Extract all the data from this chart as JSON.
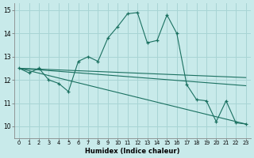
{
  "xlabel": "Humidex (Indice chaleur)",
  "background_color": "#c8eaea",
  "grid_color": "#a8d4d4",
  "line_color": "#1a7060",
  "xlim": [
    -0.5,
    23.5
  ],
  "ylim": [
    9.5,
    15.3
  ],
  "yticks": [
    10,
    11,
    12,
    13,
    14,
    15
  ],
  "xticks": [
    0,
    1,
    2,
    3,
    4,
    5,
    6,
    7,
    8,
    9,
    10,
    11,
    12,
    13,
    14,
    15,
    16,
    17,
    18,
    19,
    20,
    21,
    22,
    23
  ],
  "main_line": {
    "x": [
      0,
      1,
      2,
      3,
      4,
      5,
      6,
      7,
      8,
      9,
      10,
      11,
      12,
      13,
      14,
      15,
      16,
      17,
      18,
      19,
      20,
      21,
      22,
      23
    ],
    "y": [
      12.5,
      12.3,
      12.5,
      12.0,
      11.85,
      11.5,
      12.8,
      13.0,
      12.8,
      13.8,
      14.3,
      14.85,
      14.9,
      13.6,
      13.7,
      14.8,
      14.0,
      11.8,
      11.15,
      11.1,
      10.2,
      11.1,
      10.15,
      10.1
    ]
  },
  "trend_lines": [
    {
      "x": [
        0,
        23
      ],
      "y": [
        12.5,
        10.1
      ]
    },
    {
      "x": [
        0,
        23
      ],
      "y": [
        12.5,
        11.75
      ]
    },
    {
      "x": [
        0,
        23
      ],
      "y": [
        12.5,
        12.1
      ]
    }
  ]
}
